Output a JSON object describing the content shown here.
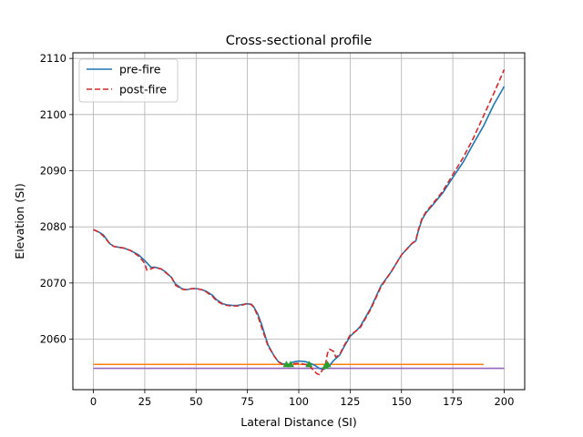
{
  "chart_data": {
    "type": "line",
    "title": "Cross-sectional profile",
    "xlabel": "Lateral Distance (SI)",
    "ylabel": "Elevation (SI)",
    "xlim": [
      -10,
      210
    ],
    "ylim": [
      2051,
      2111
    ],
    "xticks": [
      0,
      25,
      50,
      75,
      100,
      125,
      150,
      175,
      200
    ],
    "yticks": [
      2060,
      2070,
      2080,
      2090,
      2100,
      2110
    ],
    "grid": true,
    "legend_position": "upper-left",
    "series": [
      {
        "name": "pre-fire",
        "color": "#1f77b4",
        "style": "solid",
        "x": [
          0,
          3,
          5,
          8,
          10,
          15,
          18,
          22,
          25,
          28,
          30,
          33,
          35,
          38,
          40,
          43,
          45,
          48,
          50,
          53,
          55,
          58,
          60,
          63,
          65,
          68,
          70,
          73,
          75,
          77,
          78,
          80,
          82,
          85,
          88,
          90,
          92,
          95,
          97,
          100,
          103,
          105,
          108,
          110,
          112,
          115,
          117,
          120,
          122,
          125,
          128,
          130,
          135,
          140,
          145,
          150,
          155,
          157,
          158,
          160,
          162,
          165,
          170,
          175,
          180,
          185,
          190,
          195,
          200
        ],
        "y": [
          2079.5,
          2079,
          2078.5,
          2077,
          2076.5,
          2076.2,
          2075.8,
          2075,
          2074,
          2072.8,
          2072.8,
          2072.5,
          2072,
          2071,
          2069.8,
          2069,
          2068.8,
          2069,
          2069,
          2068.8,
          2068.5,
          2067.8,
          2067,
          2066.3,
          2066.1,
          2066,
          2066,
          2066.2,
          2066.3,
          2066.2,
          2065.8,
          2064.5,
          2062.5,
          2059,
          2057,
          2056,
          2055.6,
          2055.5,
          2055.9,
          2056.1,
          2056,
          2055.8,
          2055.3,
          2054.8,
          2054.6,
          2055.3,
          2056.2,
          2057.2,
          2058.6,
          2060.5,
          2061.5,
          2062.3,
          2065.5,
          2069.5,
          2072,
          2075,
          2077,
          2077.5,
          2079,
          2081.3,
          2082.5,
          2083.8,
          2086,
          2088.8,
          2091.5,
          2094.8,
          2098,
          2101.8,
          2105
        ]
      },
      {
        "name": "post-fire",
        "color": "#d62728",
        "style": "dashed",
        "x": [
          0,
          3,
          5,
          8,
          10,
          15,
          18,
          22,
          25,
          26,
          28,
          30,
          33,
          35,
          38,
          40,
          43,
          45,
          48,
          50,
          53,
          55,
          58,
          60,
          63,
          65,
          68,
          70,
          73,
          75,
          77,
          78,
          80,
          82,
          85,
          88,
          90,
          92,
          95,
          97,
          100,
          103,
          105,
          107,
          109,
          110,
          111,
          113,
          114,
          115,
          117,
          118,
          120,
          122,
          125,
          128,
          130,
          135,
          140,
          145,
          150,
          155,
          157,
          158,
          160,
          162,
          165,
          170,
          175,
          180,
          185,
          190,
          195,
          200
        ],
        "y": [
          2079.5,
          2079,
          2078.3,
          2077,
          2076.5,
          2076.2,
          2075.8,
          2074.8,
          2073.5,
          2072.3,
          2072.5,
          2072.8,
          2072.5,
          2071.9,
          2071,
          2069.6,
          2068.9,
          2068.8,
          2069,
          2069,
          2068.8,
          2068.4,
          2067.6,
          2066.8,
          2066.2,
          2066,
          2065.9,
          2065.9,
          2066.1,
          2066.4,
          2066.1,
          2065.7,
          2064.2,
          2062,
          2058.8,
          2057,
          2056,
          2055.5,
          2055.3,
          2055.6,
          2055.7,
          2055.5,
          2055.3,
          2054.5,
          2053.8,
          2053.7,
          2054.2,
          2055.5,
          2057.5,
          2058.2,
          2057.8,
          2056.8,
          2057.3,
          2058.8,
          2060.7,
          2061.5,
          2062.1,
          2065.3,
          2069.3,
          2072,
          2075,
          2077,
          2077.6,
          2079.2,
          2081.5,
          2082.7,
          2084,
          2086.3,
          2089.3,
          2092.3,
          2095.8,
          2099.8,
          2103.8,
          2108
        ]
      },
      {
        "color": "#ff7f0e",
        "style": "solid",
        "x": [
          0,
          190
        ],
        "y": [
          2055.5,
          2055.5
        ]
      },
      {
        "color": "#9467bd",
        "style": "solid",
        "x": [
          0,
          200
        ],
        "y": [
          2054.8,
          2054.8
        ]
      }
    ],
    "markers": {
      "color": "#2ca02c",
      "shape": "triangle-up",
      "x": [
        94,
        96,
        105,
        113,
        114
      ],
      "y": [
        2055.5,
        2055.5,
        2055.5,
        2055.2,
        2055.5
      ]
    }
  }
}
